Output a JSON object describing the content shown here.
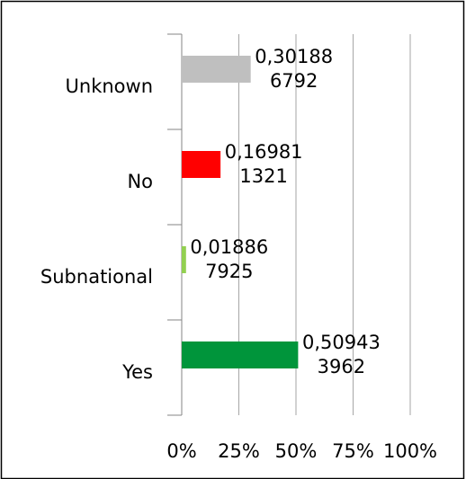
{
  "chart_data": {
    "type": "bar",
    "orientation": "horizontal",
    "categories": [
      "Unknown",
      "No",
      "Subnational",
      "Yes"
    ],
    "values": [
      0.301886792,
      0.169811321,
      0.018867925,
      0.509433962
    ],
    "value_labels": [
      "0,301886792",
      "0,169811321",
      "0,018867925",
      "0,509433962"
    ],
    "colors": [
      "#bfbfbf",
      "#ff0000",
      "#92d050",
      "#00953b"
    ],
    "xlim": [
      0,
      1
    ],
    "xticks": [
      {
        "value": 0,
        "label": "0%"
      },
      {
        "value": 0.25,
        "label": "25%"
      },
      {
        "value": 0.5,
        "label": "50%"
      },
      {
        "value": 0.75,
        "label": "75%"
      },
      {
        "value": 1,
        "label": "100%"
      }
    ],
    "grid": true
  }
}
